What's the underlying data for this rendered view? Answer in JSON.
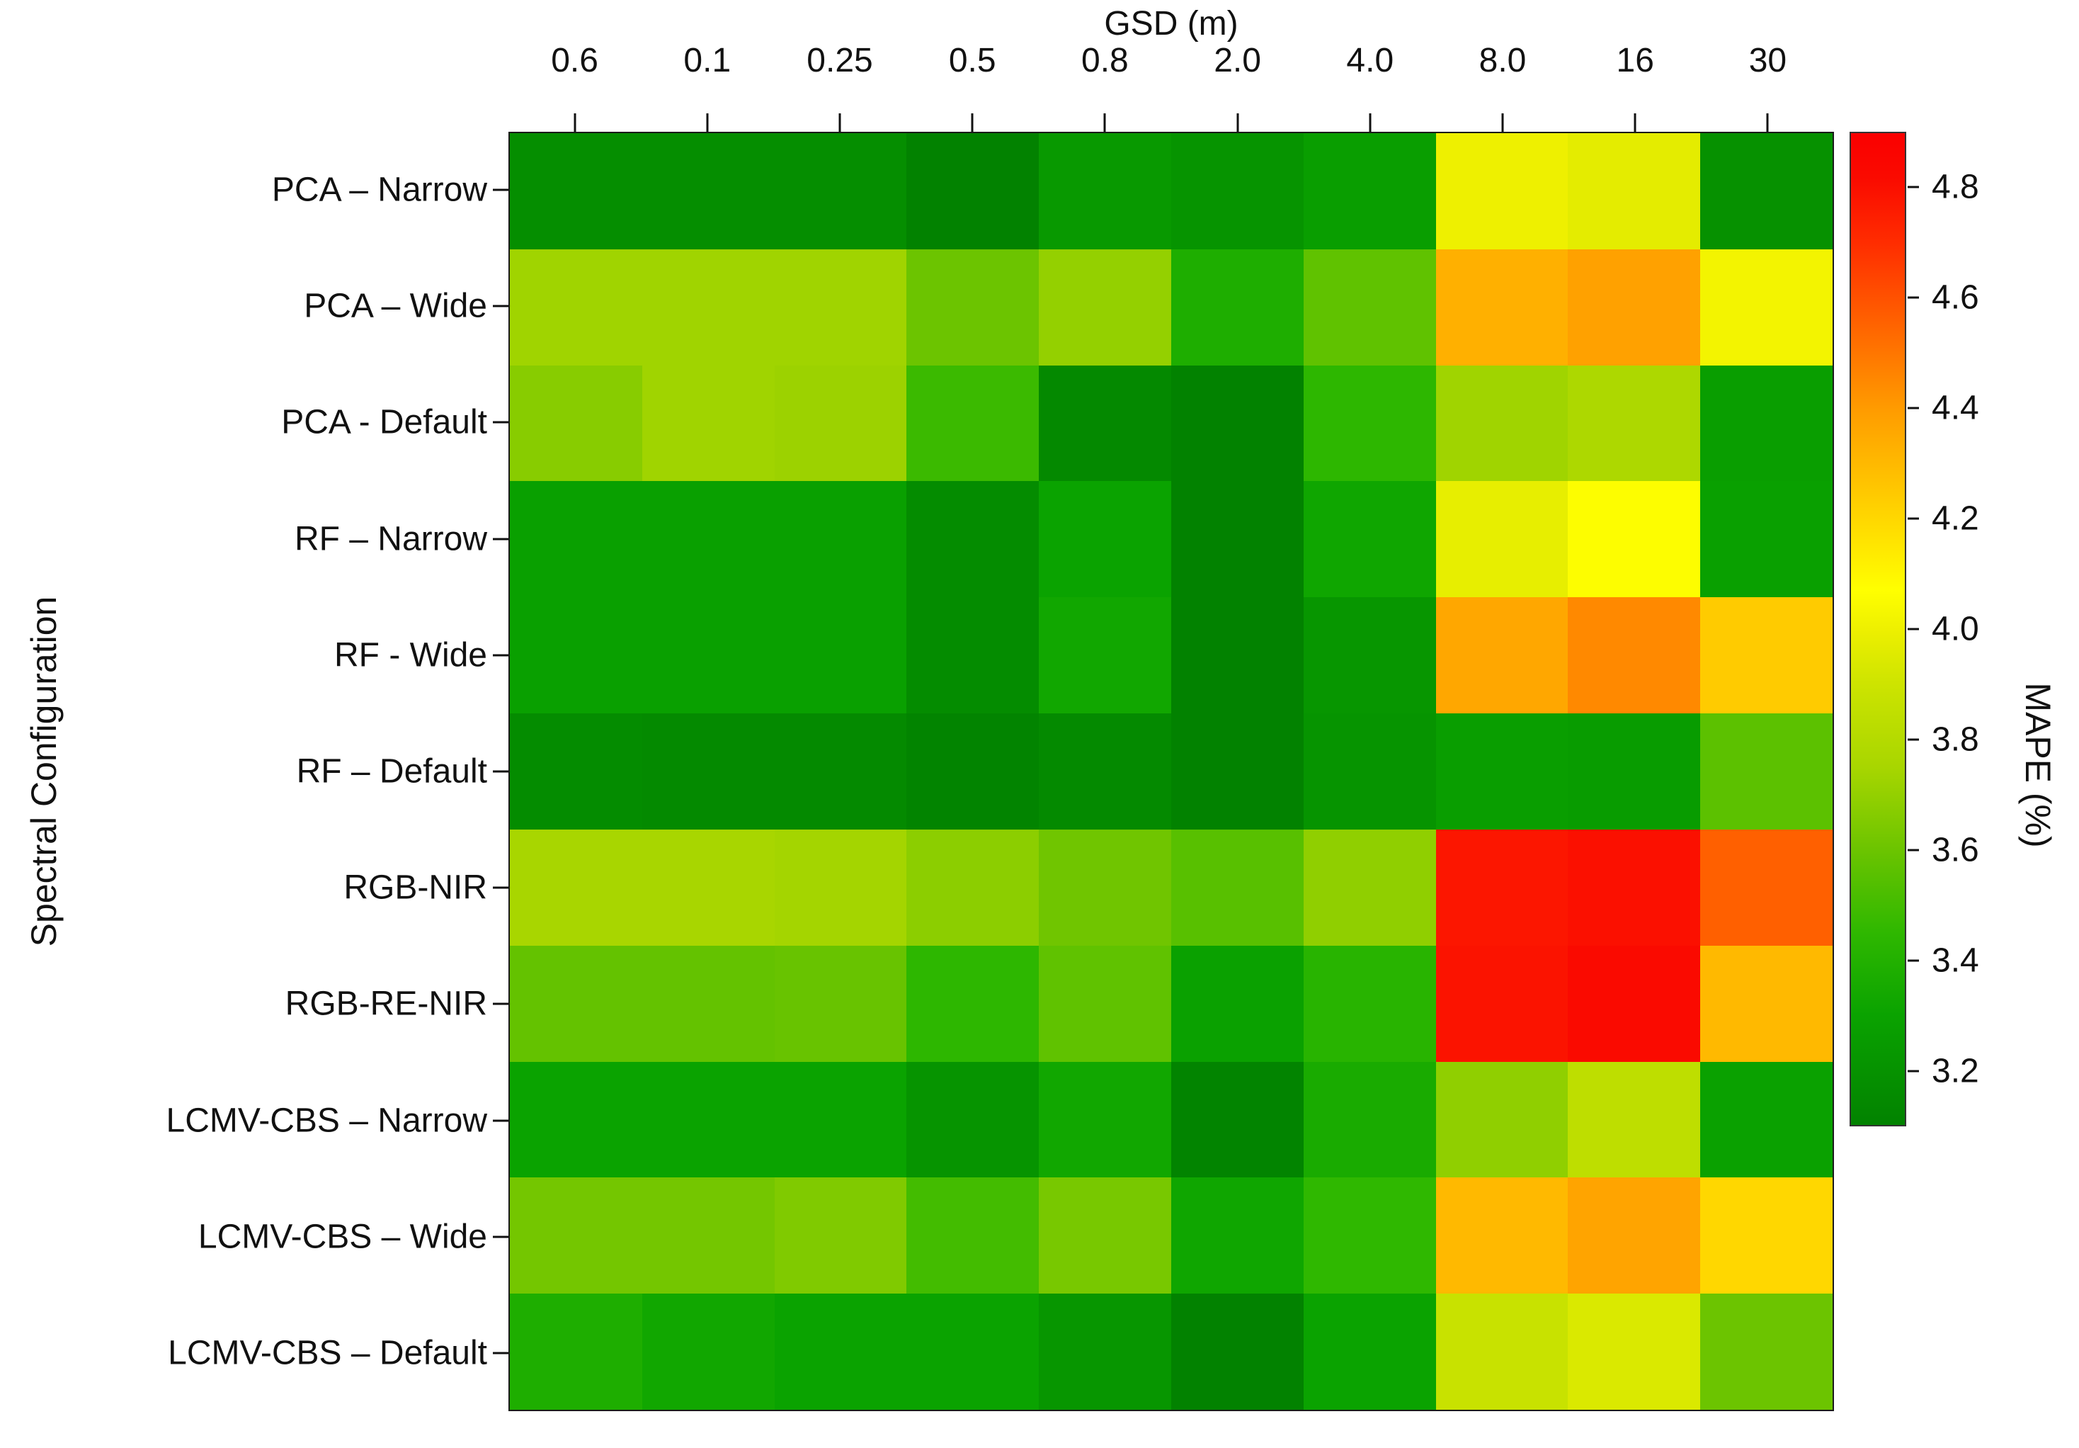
{
  "chart_data": {
    "type": "heatmap",
    "xlabel": "GSD (m)",
    "ylabel": "Spectral Configuration",
    "colorbar_label": "MAPE (%)",
    "x_categories": [
      "0.6",
      "0.1",
      "0.25",
      "0.5",
      "0.8",
      "2.0",
      "4.0",
      "8.0",
      "16",
      "30"
    ],
    "y_categories": [
      "PCA – Narrow",
      "PCA – Wide",
      "PCA - Default",
      "RF – Narrow",
      "RF - Wide",
      "RF – Default",
      "RGB-NIR",
      "RGB-RE-NIR",
      "LCMV-CBS – Narrow",
      "LCMV-CBS – Wide",
      "LCMV-CBS – Default"
    ],
    "vmin": 3.1,
    "vmax": 4.9,
    "grid": false,
    "legend_position": "right-colorbar",
    "values": [
      [
        3.17,
        3.17,
        3.17,
        3.09,
        3.24,
        3.21,
        3.27,
        4.0,
        3.97,
        3.19
      ],
      [
        3.73,
        3.73,
        3.73,
        3.6,
        3.7,
        3.38,
        3.57,
        4.33,
        4.38,
        4.02
      ],
      [
        3.67,
        3.73,
        3.72,
        3.48,
        3.14,
        3.09,
        3.44,
        3.73,
        3.77,
        3.27
      ],
      [
        3.28,
        3.28,
        3.28,
        3.16,
        3.3,
        3.09,
        3.32,
        3.98,
        4.06,
        3.28
      ],
      [
        3.28,
        3.28,
        3.28,
        3.16,
        3.33,
        3.07,
        3.22,
        4.36,
        4.45,
        4.24
      ],
      [
        3.16,
        3.15,
        3.15,
        3.11,
        3.15,
        3.07,
        3.21,
        3.27,
        3.26,
        3.56
      ],
      [
        3.75,
        3.75,
        3.74,
        3.68,
        3.61,
        3.55,
        3.69,
        4.78,
        4.8,
        4.56
      ],
      [
        3.58,
        3.58,
        3.59,
        3.44,
        3.57,
        3.29,
        3.42,
        4.79,
        4.82,
        4.3
      ],
      [
        3.3,
        3.3,
        3.3,
        3.21,
        3.33,
        3.11,
        3.36,
        3.69,
        3.84,
        3.29
      ],
      [
        3.62,
        3.62,
        3.65,
        3.5,
        3.63,
        3.32,
        3.45,
        4.3,
        4.37,
        4.2
      ],
      [
        3.38,
        3.33,
        3.3,
        3.3,
        3.22,
        3.07,
        3.3,
        3.88,
        3.94,
        3.6
      ]
    ]
  },
  "colorbar": {
    "label": "MAPE (%)",
    "tick_labels": [
      "4.8",
      "4.6",
      "4.4",
      "4.2",
      "4.0",
      "3.8",
      "3.6",
      "3.4",
      "3.2"
    ],
    "tick_values": [
      4.8,
      4.6,
      4.4,
      4.2,
      4.0,
      3.8,
      3.6,
      3.4,
      3.2
    ],
    "gradient_stops": [
      {
        "v": 3.1,
        "c": "#028200"
      },
      {
        "v": 3.3,
        "c": "#0AA300"
      },
      {
        "v": 3.45,
        "c": "#2FB800"
      },
      {
        "v": 3.6,
        "c": "#6CC400"
      },
      {
        "v": 3.75,
        "c": "#A8D600"
      },
      {
        "v": 3.9,
        "c": "#CDE400"
      },
      {
        "v": 4.0,
        "c": "#EEF000"
      },
      {
        "v": 4.07,
        "c": "#FFFF00"
      },
      {
        "v": 4.25,
        "c": "#FFC800"
      },
      {
        "v": 4.4,
        "c": "#FF9B00"
      },
      {
        "v": 4.55,
        "c": "#FF6400"
      },
      {
        "v": 4.7,
        "c": "#FF2D00"
      },
      {
        "v": 4.82,
        "c": "#FA0A00"
      },
      {
        "v": 4.9,
        "c": "#FA0000"
      }
    ]
  },
  "axis_colors": {
    "tick": "#111111",
    "text": "#111111",
    "plot_border": "#1a1a1a"
  }
}
